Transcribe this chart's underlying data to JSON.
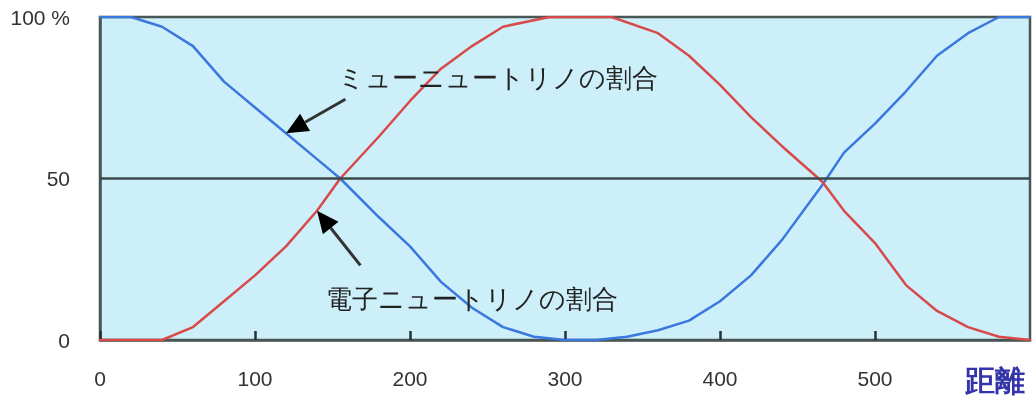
{
  "chart_data": {
    "type": "line",
    "xlabel": "距離",
    "xlim": [
      0,
      600
    ],
    "xticks": [
      0,
      100,
      200,
      300,
      400,
      500
    ],
    "ylim": [
      0,
      100
    ],
    "yticks": [
      0,
      50,
      {
        "value": 100,
        "label": "100 %"
      }
    ],
    "grid": false,
    "marker": "none",
    "line_style": "solid",
    "series": [
      {
        "color": "#3a78e0",
        "x": [
          0,
          20,
          40,
          60,
          80,
          100,
          120,
          140,
          155,
          180,
          200,
          220,
          240,
          260,
          280,
          300,
          320,
          340,
          360,
          380,
          400,
          420,
          440,
          466,
          480,
          500,
          520,
          540,
          560,
          580,
          600
        ],
        "values": [
          100,
          100,
          97,
          91,
          80,
          72,
          64,
          56,
          50,
          38,
          29,
          18,
          10,
          4,
          1,
          0,
          0,
          1,
          3,
          6,
          12,
          20,
          31,
          48,
          58,
          67,
          77,
          88,
          95,
          100,
          100
        ]
      },
      {
        "color": "#d84a4a",
        "x": [
          0,
          40,
          60,
          80,
          100,
          120,
          140,
          155,
          180,
          200,
          220,
          240,
          260,
          290,
          330,
          360,
          380,
          400,
          420,
          440,
          466,
          480,
          500,
          520,
          540,
          560,
          580,
          600
        ],
        "values": [
          0,
          0,
          4,
          12,
          20,
          29,
          40,
          50,
          63,
          74,
          84,
          91,
          97,
          100,
          100,
          95,
          88,
          79,
          69,
          60,
          49,
          40,
          30,
          17,
          9,
          4,
          1,
          0
        ]
      }
    ],
    "ref_lines": [
      {
        "axis": "y",
        "value": 50,
        "color": "#3a4a4a"
      }
    ],
    "annotations": [
      {
        "text": "ミューニュートリノの割合",
        "x": 120,
        "y": 64
      },
      {
        "text": "電子ニュートリノの割合",
        "x": 140,
        "y": 40
      }
    ]
  }
}
